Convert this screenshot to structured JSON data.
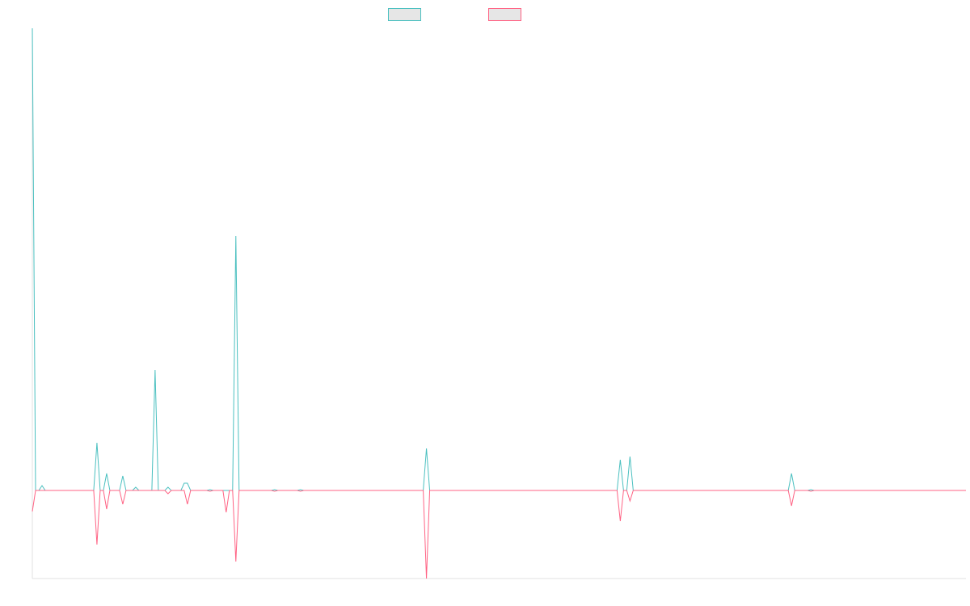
{
  "chart_data": {
    "type": "line",
    "x": [
      0,
      1,
      2,
      3,
      4,
      19,
      20,
      21,
      22,
      23,
      24,
      27,
      28,
      29,
      31,
      32,
      33,
      37,
      38,
      39,
      41,
      42,
      43,
      46,
      47,
      48,
      49,
      54,
      55,
      56,
      59,
      60,
      61,
      62,
      63,
      64,
      74,
      75,
      76,
      82,
      83,
      84,
      121,
      122,
      123,
      181,
      182,
      183,
      184,
      185,
      186,
      234,
      235,
      236,
      240,
      241,
      242,
      289
    ],
    "series": [
      {
        "color": "#4bc0c0",
        "values": [
          5.72,
          0,
          0,
          0.06,
          0,
          0,
          0.59,
          0,
          0,
          0.21,
          0,
          0,
          0.18,
          0,
          0,
          0.04,
          0,
          0,
          1.49,
          0,
          0,
          0.04,
          0,
          0,
          0.09,
          0.09,
          0,
          0,
          0.01,
          0,
          0,
          0,
          0,
          0,
          3.15,
          0,
          0,
          0.01,
          0,
          0,
          0.01,
          0,
          0,
          0.52,
          0,
          0,
          0.38,
          0,
          0,
          0.42,
          0,
          0,
          0.21,
          0,
          0,
          0.01,
          0,
          0
        ]
      },
      {
        "color": "#ff6384",
        "values": [
          -0.26,
          0,
          0,
          0,
          0,
          0,
          -0.67,
          0,
          0,
          -0.23,
          0,
          0,
          -0.17,
          0,
          0,
          0,
          0,
          0,
          0,
          0,
          0,
          -0.04,
          0,
          0,
          0,
          -0.17,
          0,
          0,
          -0.01,
          0,
          0,
          -0.27,
          0,
          0,
          -0.88,
          0,
          0,
          -0.01,
          0,
          0,
          -0.01,
          0,
          0,
          -1.09,
          0,
          0,
          -0.38,
          0,
          0,
          -0.13,
          0,
          0,
          -0.19,
          0,
          0,
          -0.01,
          0,
          0
        ]
      }
    ],
    "xlim": [
      0,
      289
    ],
    "ylim": [
      -1.09,
      5.72
    ]
  }
}
